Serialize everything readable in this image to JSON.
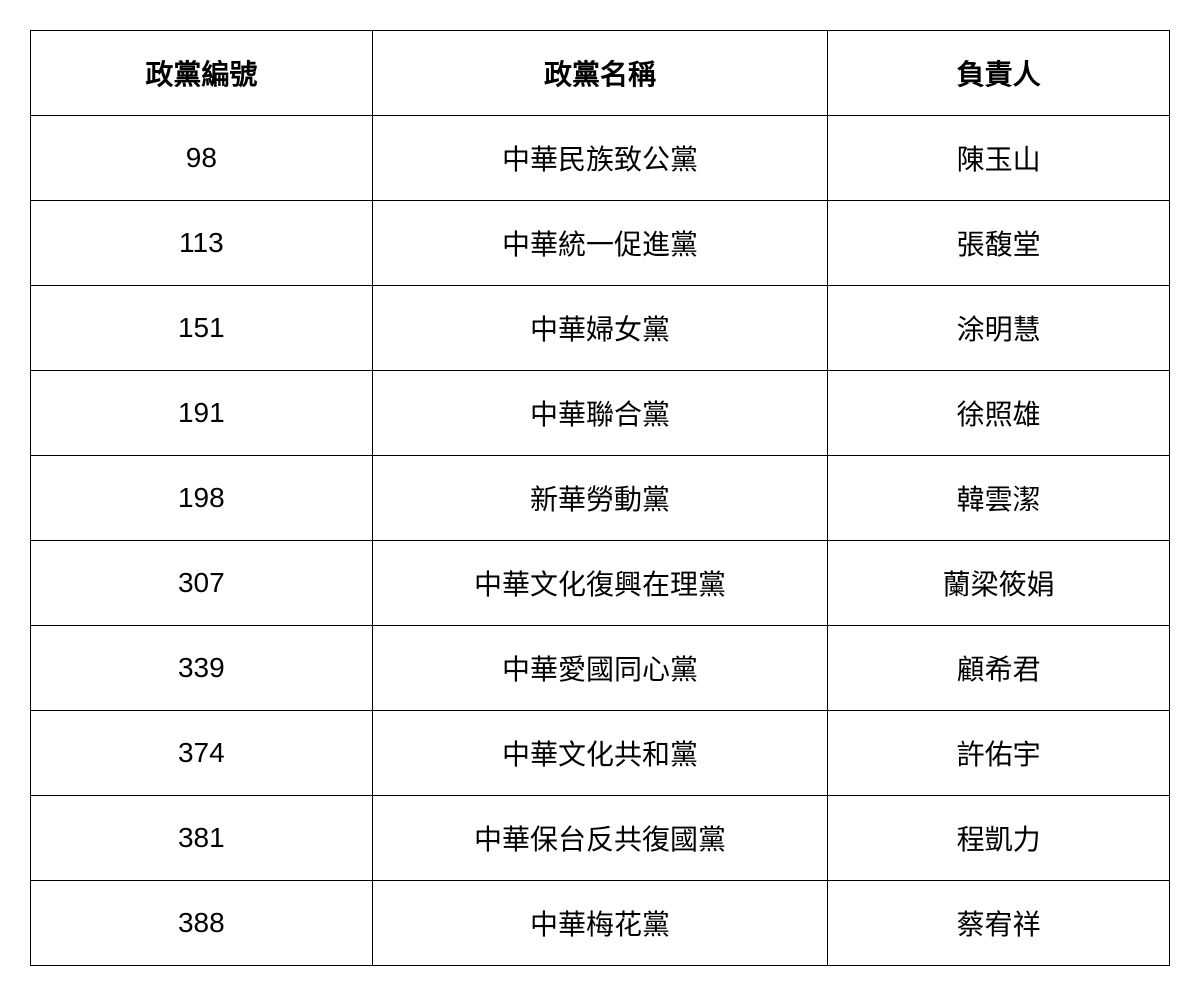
{
  "table": {
    "columns": [
      "政黨編號",
      "政黨名稱",
      "負責人"
    ],
    "rows": [
      [
        "98",
        "中華民族致公黨",
        "陳玉山"
      ],
      [
        "113",
        "中華統一促進黨",
        "張馥堂"
      ],
      [
        "151",
        "中華婦女黨",
        "涂明慧"
      ],
      [
        "191",
        "中華聯合黨",
        "徐照雄"
      ],
      [
        "198",
        "新華勞動黨",
        "韓雲潔"
      ],
      [
        "307",
        "中華文化復興在理黨",
        "蘭梁筱娟"
      ],
      [
        "339",
        "中華愛國同心黨",
        "顧希君"
      ],
      [
        "374",
        "中華文化共和黨",
        "許佑宇"
      ],
      [
        "381",
        "中華保台反共復國黨",
        "程凱力"
      ],
      [
        "388",
        "中華梅花黨",
        "蔡宥祥"
      ]
    ],
    "styling": {
      "border_color": "#000000",
      "border_width": 1.5,
      "background_color": "#ffffff",
      "text_color": "#000000",
      "font_size": 28,
      "header_font_weight": "bold",
      "cell_padding_vertical": 22,
      "cell_padding_horizontal": 10,
      "column_widths_percent": [
        30,
        40,
        30
      ],
      "text_align": "center"
    }
  }
}
